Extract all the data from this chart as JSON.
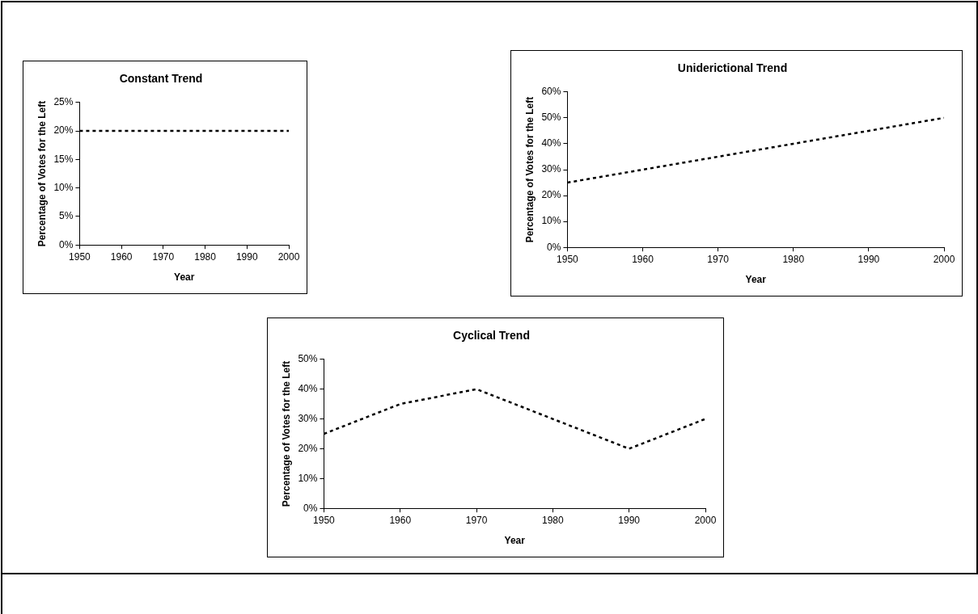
{
  "chart_data": [
    {
      "type": "line",
      "title": "Constant Trend",
      "xlabel": "Year",
      "ylabel": "Percentage of Votes for the Left",
      "x": [
        1950,
        1960,
        1970,
        1980,
        1990,
        2000
      ],
      "series": [
        {
          "color": "#000000",
          "values": [
            20,
            20,
            20,
            20,
            20,
            20
          ]
        }
      ],
      "xlim": [
        1950,
        2000
      ],
      "xticks": [
        1950,
        1960,
        1970,
        1980,
        1990,
        2000
      ],
      "ylim": [
        0,
        25
      ],
      "yticks": [
        {
          "value": 0,
          "label": "0%"
        },
        {
          "value": 5,
          "label": "5%"
        },
        {
          "value": 10,
          "label": "10%"
        },
        {
          "value": 15,
          "label": "15%"
        },
        {
          "value": 20,
          "label": "20%"
        },
        {
          "value": 25,
          "label": "25%"
        }
      ],
      "grid": false,
      "legend": false,
      "marker": "none",
      "line_style": "dashed"
    },
    {
      "type": "line",
      "title": "Uniderictional Trend",
      "xlabel": "Year",
      "ylabel": "Percentage of Votes for the Left",
      "x": [
        1950,
        1960,
        1970,
        1980,
        1990,
        2000
      ],
      "series": [
        {
          "color": "#000000",
          "values": [
            25,
            30,
            35,
            40,
            45,
            50
          ]
        }
      ],
      "xlim": [
        1950,
        2000
      ],
      "xticks": [
        1950,
        1960,
        1970,
        1980,
        1990,
        2000
      ],
      "ylim": [
        0,
        60
      ],
      "yticks": [
        {
          "value": 0,
          "label": "0%"
        },
        {
          "value": 10,
          "label": "10%"
        },
        {
          "value": 20,
          "label": "20%"
        },
        {
          "value": 30,
          "label": "30%"
        },
        {
          "value": 40,
          "label": "40%"
        },
        {
          "value": 50,
          "label": "50%"
        },
        {
          "value": 60,
          "label": "60%"
        }
      ],
      "grid": false,
      "legend": false,
      "marker": "none",
      "line_style": "dashed"
    },
    {
      "type": "line",
      "title": "Cyclical Trend",
      "xlabel": "Year",
      "ylabel": "Percentage of Votes for the Left",
      "x": [
        1950,
        1960,
        1970,
        1980,
        1990,
        2000
      ],
      "series": [
        {
          "color": "#000000",
          "values": [
            25,
            35,
            40,
            30,
            20,
            30
          ]
        }
      ],
      "xlim": [
        1950,
        2000
      ],
      "xticks": [
        1950,
        1960,
        1970,
        1980,
        1990,
        2000
      ],
      "ylim": [
        0,
        50
      ],
      "yticks": [
        {
          "value": 0,
          "label": "0%"
        },
        {
          "value": 10,
          "label": "10%"
        },
        {
          "value": 20,
          "label": "20%"
        },
        {
          "value": 30,
          "label": "30%"
        },
        {
          "value": 40,
          "label": "40%"
        },
        {
          "value": 50,
          "label": "50%"
        }
      ],
      "grid": false,
      "legend": false,
      "marker": "none",
      "line_style": "dashed"
    }
  ]
}
